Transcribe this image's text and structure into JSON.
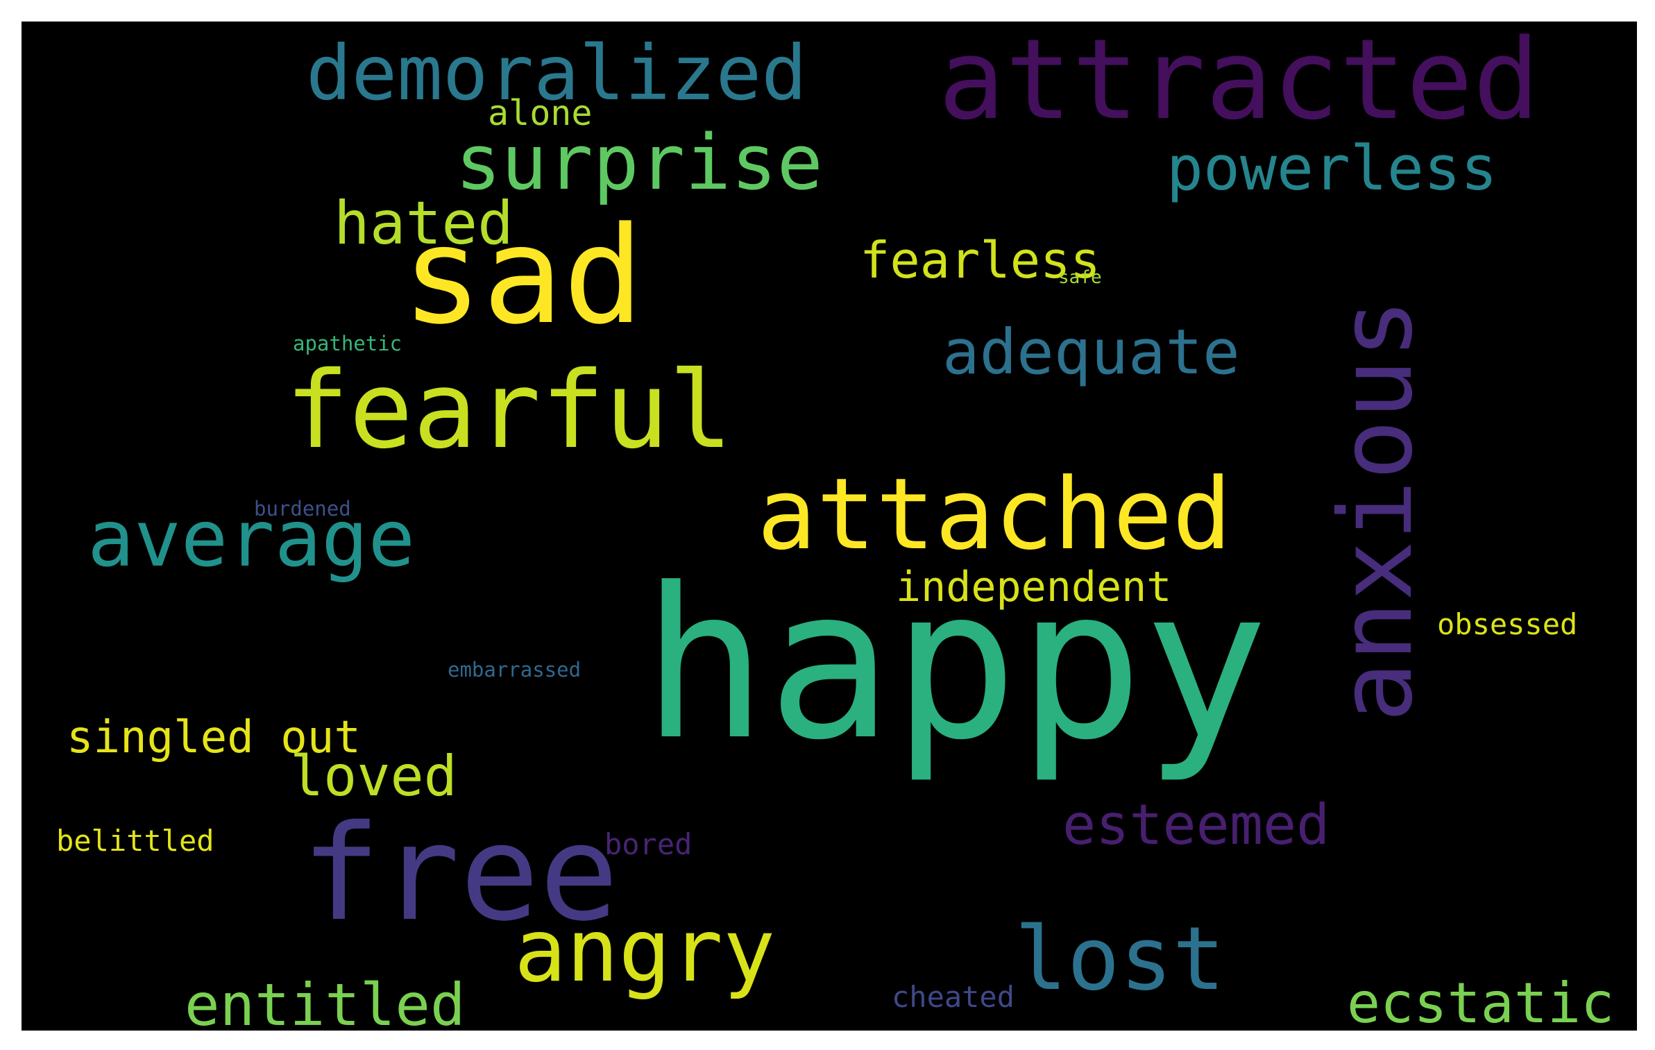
{
  "words": [
    {
      "text": "happy",
      "color": "#2bb07f"
    },
    {
      "text": "sad",
      "color": "#fde725"
    },
    {
      "text": "attracted",
      "color": "#440f5c"
    },
    {
      "text": "fearful",
      "color": "#c8e020"
    },
    {
      "text": "anxious",
      "color": "#472d7b"
    },
    {
      "text": "free",
      "color": "#443a83"
    },
    {
      "text": "attached",
      "color": "#fde725"
    },
    {
      "text": "angry",
      "color": "#d8e219"
    },
    {
      "text": "surprise",
      "color": "#5ec962"
    },
    {
      "text": "demoralized",
      "color": "#2a788e"
    },
    {
      "text": "average",
      "color": "#21918c"
    },
    {
      "text": "lost",
      "color": "#2c728e"
    },
    {
      "text": "powerless",
      "color": "#25858e"
    },
    {
      "text": "adequate",
      "color": "#2c718e"
    },
    {
      "text": "hated",
      "color": "#b5de2b"
    },
    {
      "text": "entitled",
      "color": "#7ad151"
    },
    {
      "text": "ecstatic",
      "color": "#7ad151"
    },
    {
      "text": "esteemed",
      "color": "#481f70"
    },
    {
      "text": "loved",
      "color": "#bddf26"
    },
    {
      "text": "fearless",
      "color": "#d2e21b"
    },
    {
      "text": "singled out",
      "color": "#e5e419"
    },
    {
      "text": "independent",
      "color": "#d8e219"
    },
    {
      "text": "alone",
      "color": "#a8db34"
    },
    {
      "text": "obsessed",
      "color": "#dde318"
    },
    {
      "text": "belittled",
      "color": "#e2e418"
    },
    {
      "text": "bored",
      "color": "#482475"
    },
    {
      "text": "cheated",
      "color": "#3e4989"
    },
    {
      "text": "burdened",
      "color": "#3b518b"
    },
    {
      "text": "embarrassed",
      "color": "#31688e"
    },
    {
      "text": "apathetic",
      "color": "#35b779"
    },
    {
      "text": "safe",
      "color": "#a5db36"
    }
  ]
}
